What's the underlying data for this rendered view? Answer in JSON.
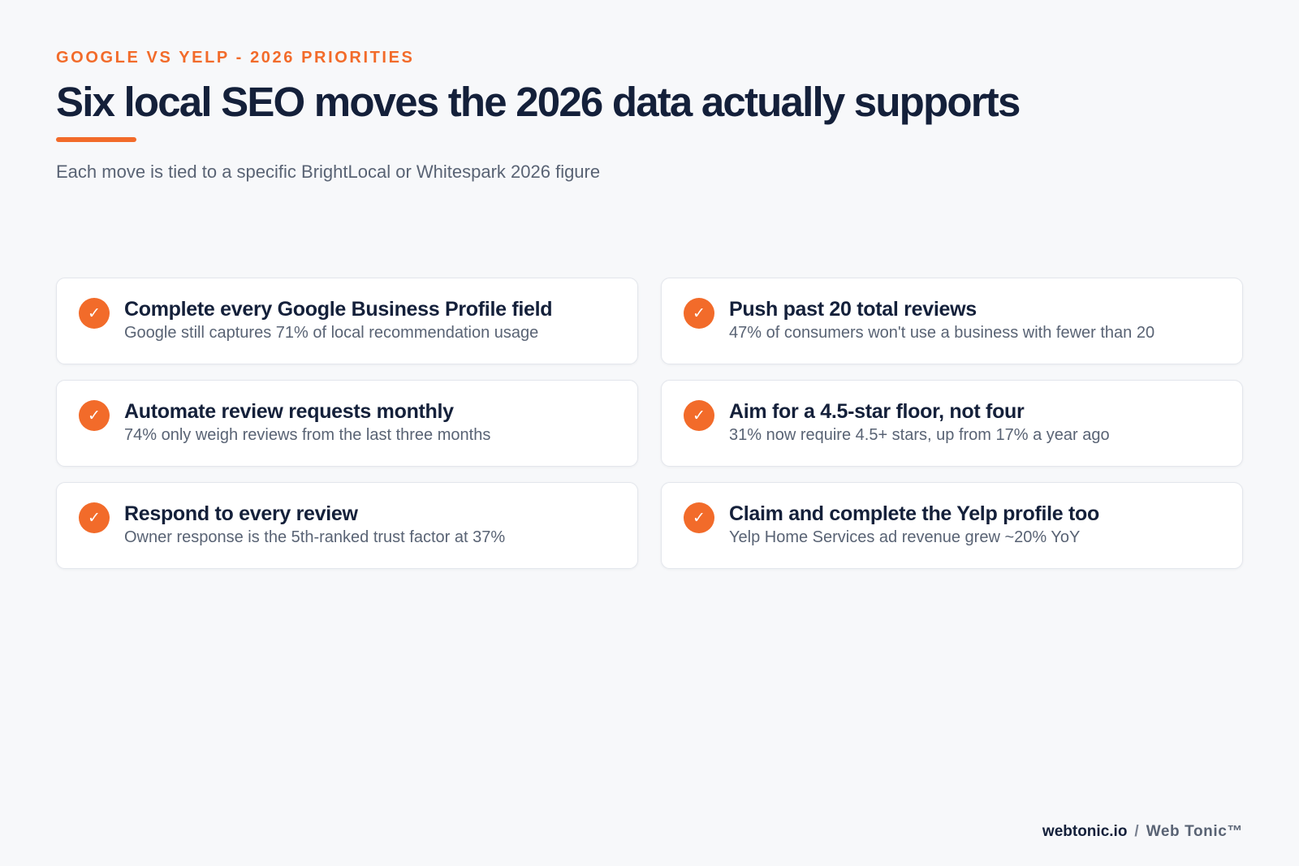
{
  "header": {
    "eyebrow": "GOOGLE VS YELP - 2026 PRIORITIES",
    "title": "Six local SEO moves the 2026 data actually supports",
    "subtitle": "Each move is tied to a specific BrightLocal or Whitespark 2026 figure"
  },
  "colors": {
    "accent": "#f26b2a",
    "heading": "#14203a",
    "body_text": "#596374",
    "background": "#f7f8fa",
    "card": "#ffffff"
  },
  "items": [
    {
      "icon": "check-circle-icon",
      "title": "Complete every Google Business Profile field",
      "description": "Google still captures 71% of local recommendation usage"
    },
    {
      "icon": "check-circle-icon",
      "title": "Push past 20 total reviews",
      "description": "47% of consumers won't use a business with fewer than 20"
    },
    {
      "icon": "check-circle-icon",
      "title": "Automate review requests monthly",
      "description": "74% only weigh reviews from the last three months"
    },
    {
      "icon": "check-circle-icon",
      "title": "Aim for a 4.5-star floor, not four",
      "description": "31% now require 4.5+ stars, up from 17% a year ago"
    },
    {
      "icon": "check-circle-icon",
      "title": "Respond to every review",
      "description": "Owner response is the 5th-ranked trust factor at 37%"
    },
    {
      "icon": "check-circle-icon",
      "title": "Claim and complete the Yelp profile too",
      "description": "Yelp Home Services ad revenue grew ~20% YoY"
    }
  ],
  "footer": {
    "site": "webtonic.io",
    "separator": "/",
    "brand": "Web Tonic™"
  }
}
